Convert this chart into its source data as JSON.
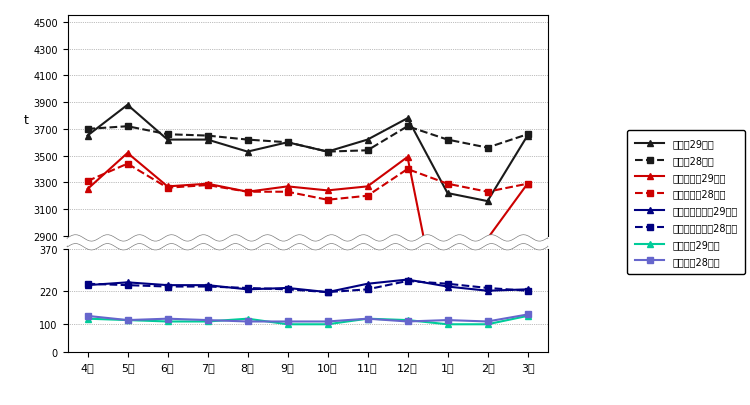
{
  "months": [
    "4月",
    "5月",
    "6月",
    "7月",
    "8月",
    "9月",
    "10月",
    "11月",
    "12月",
    "1月",
    "2月",
    "3月"
  ],
  "total_29": [
    3650,
    3880,
    3620,
    3620,
    3530,
    3600,
    3530,
    3620,
    3780,
    3220,
    3160,
    3650
  ],
  "total_28": [
    3700,
    3720,
    3660,
    3650,
    3620,
    3600,
    3530,
    3540,
    3720,
    3620,
    3560,
    3660
  ],
  "moeru_29": [
    3250,
    3520,
    3270,
    3290,
    3230,
    3270,
    3240,
    3270,
    3490,
    2000,
    2880,
    3290
  ],
  "moeru_28": [
    3310,
    3440,
    3260,
    3280,
    3230,
    3230,
    3170,
    3200,
    3400,
    3290,
    3230,
    3290
  ],
  "moenai_29": [
    240,
    250,
    240,
    240,
    225,
    230,
    215,
    245,
    260,
    235,
    220,
    225
  ],
  "moenai_28": [
    245,
    240,
    235,
    235,
    230,
    225,
    215,
    225,
    255,
    245,
    230,
    220
  ],
  "sodai_29": [
    120,
    115,
    110,
    110,
    120,
    100,
    100,
    120,
    115,
    100,
    100,
    130
  ],
  "sodai_28": [
    130,
    115,
    120,
    115,
    110,
    110,
    110,
    120,
    110,
    115,
    110,
    135
  ],
  "upper_ylim": [
    2900,
    4550
  ],
  "upper_yticks": [
    2900,
    3100,
    3300,
    3500,
    3700,
    3900,
    4100,
    4300,
    4500
  ],
  "lower_ylim": [
    0,
    370
  ],
  "lower_yticks": [
    0,
    100,
    220,
    370
  ],
  "ylabel": "t",
  "color_total": "#1a1a1a",
  "color_moeru": "#cc0000",
  "color_moenai": "#000080",
  "color_sodai_29": "#00cc99",
  "color_sodai_28": "#6666cc",
  "legend_labels": [
    "合計量29年度",
    "合計量28年度",
    "燃やすごみ29年度",
    "燃やすごみ28年度",
    "燃やさないごみ29年度",
    "燃やさないごみ28年度",
    "粗大ごみ29年度",
    "粗大ごみ28年度"
  ]
}
